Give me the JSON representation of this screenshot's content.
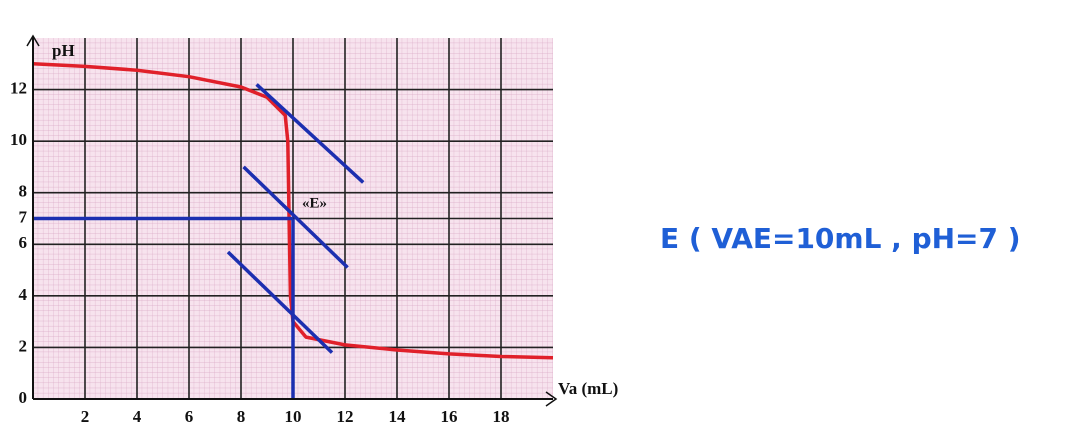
{
  "chart_data": {
    "type": "line",
    "y_label": "pH",
    "x_label": "Va (mL)",
    "point_label": "«E»",
    "annotation": "E ( VAE=10mL , pH=7 )",
    "xlim": [
      0,
      20
    ],
    "ylim": [
      0,
      14
    ],
    "xticks": [
      2,
      4,
      6,
      8,
      10,
      12,
      14,
      16,
      18
    ],
    "yticks": [
      0,
      2,
      4,
      6,
      7,
      8,
      10,
      12
    ],
    "grid": true,
    "series": [
      {
        "color": "#e0202a",
        "x": [
          0,
          2,
          4,
          6,
          8,
          9,
          9.7,
          9.8,
          9.85,
          9.9,
          10,
          10.5,
          12,
          14,
          16,
          18,
          20
        ],
        "values": [
          13,
          12.9,
          12.75,
          12.5,
          12.1,
          11.7,
          11,
          10,
          7,
          4,
          3,
          2.4,
          2.1,
          1.9,
          1.75,
          1.65,
          1.6
        ]
      },
      {
        "color": "#1c2fb0",
        "x": [
          8.6,
          12.7
        ],
        "values": [
          12.2,
          8.4
        ]
      },
      {
        "color": "#1c2fb0",
        "x": [
          8.1,
          12.1
        ],
        "values": [
          9,
          5.1
        ]
      },
      {
        "color": "#1c2fb0",
        "x": [
          7.5,
          11.5
        ],
        "values": [
          5.7,
          1.8
        ]
      },
      {
        "color": "#1c2fb0",
        "x": [
          0,
          10
        ],
        "values": [
          7,
          7
        ]
      },
      {
        "color": "#1c2fb0",
        "x": [
          10,
          10
        ],
        "values": [
          7,
          0
        ]
      }
    ]
  }
}
